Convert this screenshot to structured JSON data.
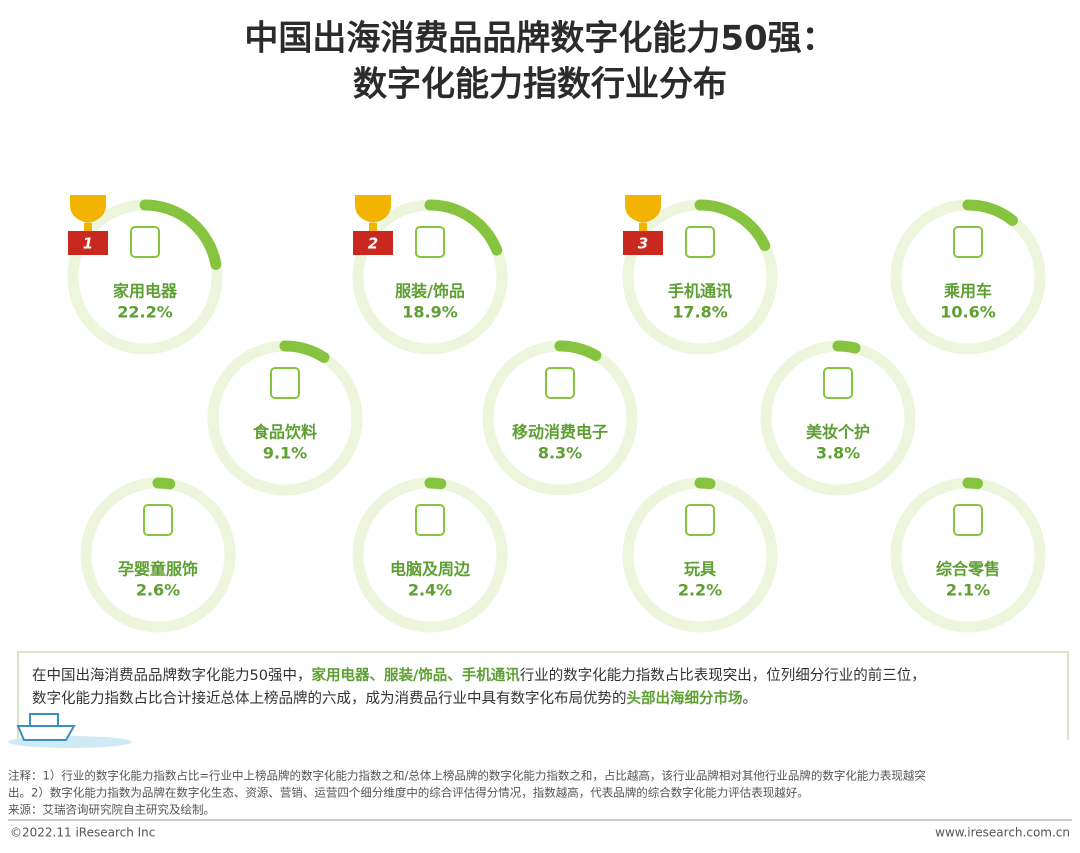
{
  "chart_data": {
    "type": "donut-gauge",
    "title": [
      "中国出海消费品品牌数字化能力50强：",
      "数字化能力指数行业分布"
    ],
    "categories": [
      "家用电器",
      "服装/饰品",
      "手机通讯",
      "乘用车",
      "食品饮料",
      "移动消费电子",
      "美妆个护",
      "孕婴童服饰",
      "电脑及周边",
      "玩具",
      "综合零售"
    ],
    "values": [
      22.2,
      18.9,
      17.8,
      10.6,
      9.1,
      8.3,
      3.8,
      2.6,
      2.4,
      2.2,
      2.1
    ],
    "value_labels": [
      "22.2%",
      "18.9%",
      "17.8%",
      "10.6%",
      "9.1%",
      "8.3%",
      "3.8%",
      "2.6%",
      "2.4%",
      "2.2%",
      "2.1%"
    ],
    "ranks": [
      1,
      2,
      3,
      null,
      null,
      null,
      null,
      null,
      null,
      null,
      null
    ],
    "color": "#86c440",
    "track_color": "#eef5dd",
    "label_color": "#5d9f32"
  },
  "summary": [
    [
      {
        "text": "在中国出海消费品品牌数字化能力50强中，",
        "bold": false
      },
      {
        "text": "家用电器、服装/饰品、手机通讯",
        "bold": true
      },
      {
        "text": "行业的数字化能力指数占比表现突出，位列细分行业的前三位，",
        "bold": false
      }
    ],
    [
      {
        "text": "数字化能力指数占比合计接近总体上榜品牌的六成，成为消费品行业中具有数字化布局优势的",
        "bold": false
      },
      {
        "text": "头部出海细分市场",
        "bold": true
      },
      {
        "text": "。",
        "bold": false
      }
    ]
  ],
  "notes": [
    "注释：1）行业的数字化能力指数占比=行业中上榜品牌的数字化能力指数之和/总体上榜品牌的数字化能力指数之和，占比越高，该行业品牌相对其他行业品牌的数字化能力表现越突",
    "出。2）数字化能力指数为品牌在数字化生态、资源、营销、运营四个细分维度中的综合评估得分情况，指数越高，代表品牌的综合数字化能力评估表现越好。",
    "来源：艾瑞咨询研究院自主研究及绘制。"
  ],
  "footer": {
    "left": "©2022.11 iResearch Inc",
    "right": "www.iresearch.com.cn"
  }
}
